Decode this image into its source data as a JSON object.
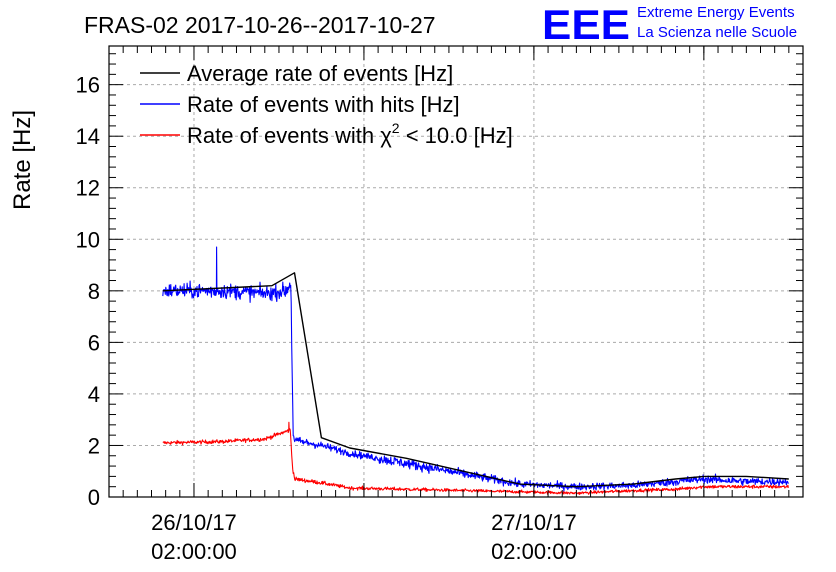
{
  "chart_data": {
    "type": "line",
    "title": "FRAS-02 2017-10-26--2017-10-27",
    "xlabel": "",
    "ylabel": "Rate [Hz]",
    "ylim": [
      0,
      17.5
    ],
    "y_ticks": [
      "0",
      "2",
      "4",
      "6",
      "8",
      "10",
      "12",
      "14",
      "16"
    ],
    "x_ticks": [
      {
        "date": "26/10/17",
        "time": "02:00:00",
        "hours": 2
      },
      {
        "date": "27/10/17",
        "time": "02:00:00",
        "hours": 26
      }
    ],
    "xlim_hours": [
      -4,
      45
    ],
    "grid": true,
    "legend_position": "top-left",
    "legend": [
      {
        "label_pre": "Average rate of events [Hz]",
        "chi": "",
        "sup": "",
        "label_post": "",
        "color": "#000000"
      },
      {
        "label_pre": "Rate of events with hits [Hz]",
        "chi": "",
        "sup": "",
        "label_post": "",
        "color": "#0000ff"
      },
      {
        "label_pre": "Rate of events with ",
        "chi": "χ",
        "sup": "2",
        "label_post": " < 10.0 [Hz]",
        "color": "#ff0000"
      }
    ],
    "series": [
      {
        "name": "Average rate of events [Hz]",
        "color": "#000000",
        "x_hours": [
          -0.2,
          7.5,
          9.1,
          11.0,
          13.0,
          17.0,
          21.0,
          25.0,
          29.0,
          33.0,
          36.0,
          38.0,
          41.0,
          44.0
        ],
        "values": [
          8.0,
          8.2,
          8.7,
          2.3,
          1.9,
          1.5,
          1.0,
          0.5,
          0.4,
          0.5,
          0.7,
          0.8,
          0.8,
          0.7
        ]
      },
      {
        "name": "Rate of events with hits [Hz]",
        "color": "#0000ff",
        "noise": 0.35,
        "x_hours": [
          -0.2,
          4.0,
          7.0,
          8.5,
          8.85,
          8.9,
          9.0,
          9.1,
          11.0,
          13.0,
          17.0,
          21.0,
          25.0,
          29.0,
          33.0,
          36.0,
          38.0,
          41.0,
          44.0
        ],
        "values": [
          8.0,
          8.0,
          7.9,
          8.0,
          8.3,
          6.0,
          2.5,
          2.2,
          2.0,
          1.7,
          1.3,
          0.9,
          0.5,
          0.4,
          0.45,
          0.6,
          0.7,
          0.6,
          0.6
        ],
        "spikes": [
          {
            "x_hours": 3.6,
            "value": 9.7
          }
        ]
      },
      {
        "name": "Rate of events with χ2 < 10.0 [Hz]",
        "color": "#ff0000",
        "noise": 0.17,
        "x_hours": [
          -0.2,
          4.0,
          7.0,
          8.8,
          8.95,
          9.1,
          11.0,
          13.0,
          17.0,
          21.0,
          25.0,
          29.0,
          33.0,
          36.0,
          38.0,
          41.0,
          44.0
        ],
        "values": [
          2.1,
          2.15,
          2.25,
          2.6,
          1.2,
          0.7,
          0.55,
          0.35,
          0.3,
          0.25,
          0.2,
          0.15,
          0.25,
          0.3,
          0.4,
          0.4,
          0.4
        ],
        "spikes": [
          {
            "x_hours": 8.7,
            "value": 2.9
          }
        ]
      }
    ]
  },
  "logo": {
    "mark": "EEE",
    "line1": "Extreme Energy Events",
    "line2": "La Scienza nelle Scuole",
    "color": "#0000ff"
  }
}
